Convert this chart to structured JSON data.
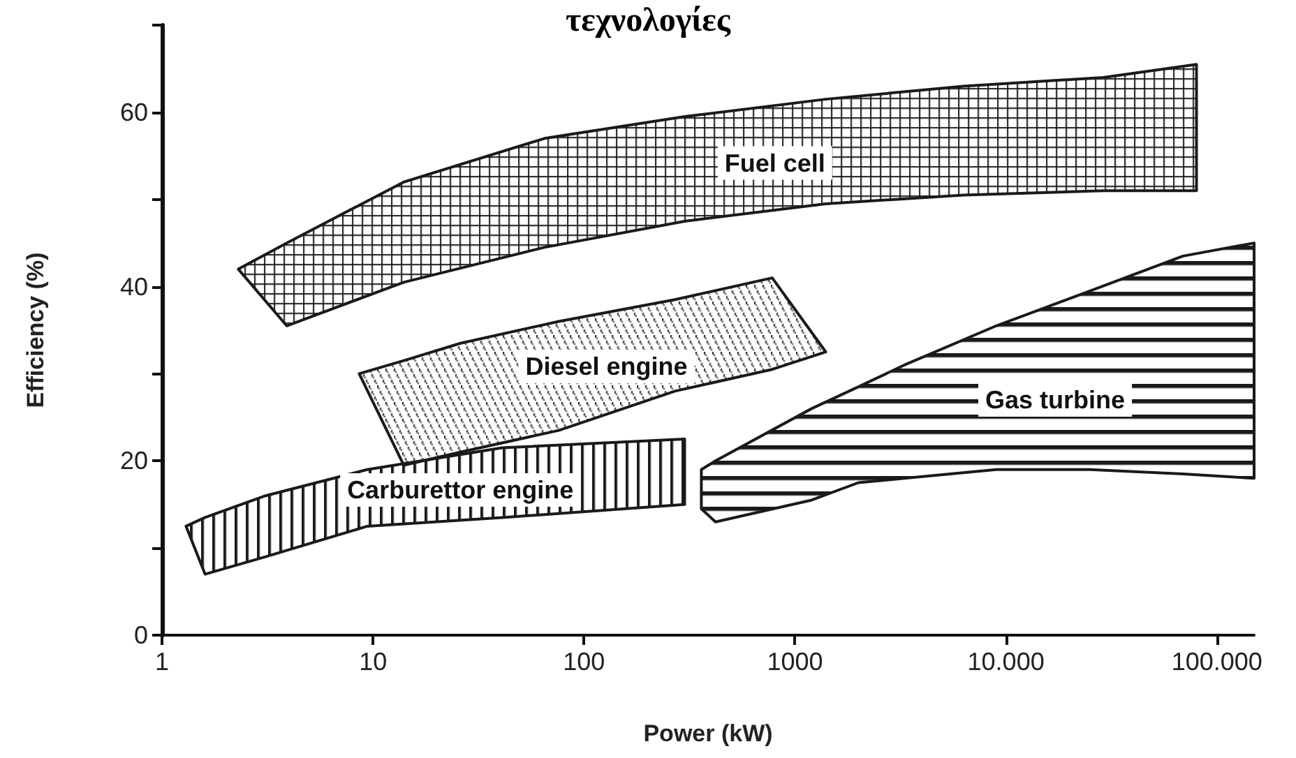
{
  "chart_data": {
    "type": "area",
    "title": "τεχνολογίες",
    "xlabel": "Power (kW)",
    "ylabel": "Efficiency (%)",
    "log": "x",
    "xlim": [
      1,
      150000
    ],
    "xticks": [
      1,
      10,
      100,
      1000,
      {
        "value": 10000,
        "label": "10.000"
      },
      {
        "value": 100000,
        "label": "100.000"
      }
    ],
    "ylim": [
      0,
      70
    ],
    "yticks": [
      0,
      {
        "value": 10,
        "label": null
      },
      20,
      {
        "value": 30,
        "label": null
      },
      40,
      {
        "value": 50,
        "label": null
      },
      60,
      {
        "value": 70,
        "label": null
      }
    ],
    "series": [
      {
        "name": "Fuel cell",
        "color": "#1a1a1a",
        "x": [
          2.3,
          3.9,
          14,
          65,
          300,
          1400,
          6300,
          29000,
          80000
        ],
        "values": [
          null,
          null,
          null,
          null,
          null,
          null,
          null,
          null,
          null
        ],
        "upper": [
          42,
          45,
          52,
          57,
          59.5,
          61.5,
          63,
          64,
          65.5
        ],
        "lower": [
          42,
          35.5,
          40.5,
          44.5,
          47.5,
          49.5,
          50.5,
          51,
          51
        ]
      },
      {
        "name": "Diesel engine",
        "color": "#1a1a1a",
        "x": [
          8.6,
          14,
          26,
          76,
          270,
          780,
          1400
        ],
        "values": [
          null,
          null,
          null,
          null,
          null,
          null,
          null
        ],
        "upper": [
          30,
          31.5,
          33.5,
          36,
          38.5,
          41,
          32.5
        ],
        "lower": [
          30,
          19.5,
          21,
          23.5,
          28,
          30.5,
          32.5
        ]
      },
      {
        "name": "Carburettor engine",
        "color": "#1a1a1a",
        "x": [
          1.3,
          1.6,
          3.1,
          9.4,
          41,
          300
        ],
        "values": [
          null,
          null,
          null,
          null,
          null,
          null
        ],
        "upper": [
          12.5,
          13.5,
          16,
          19,
          21.5,
          22.5
        ],
        "lower": [
          12.5,
          7,
          9,
          12.5,
          13.5,
          15
        ]
      },
      {
        "name": "Gas turbine",
        "color": "#1a1a1a",
        "x": [
          360,
          420,
          1200,
          2000,
          3300,
          9000,
          25000,
          69000,
          150000
        ],
        "values": [
          null,
          null,
          null,
          null,
          null,
          null,
          null,
          null,
          null
        ],
        "upper": [
          19,
          20,
          26,
          28.5,
          31,
          35.5,
          39.5,
          43.5,
          45
        ],
        "lower": [
          14.5,
          13,
          15.5,
          17.5,
          18,
          19,
          19,
          18.5,
          18
        ]
      }
    ]
  }
}
